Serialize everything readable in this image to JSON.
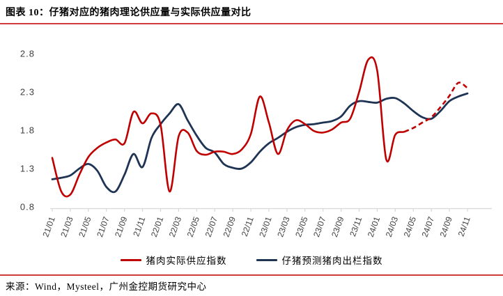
{
  "header": {
    "title": "图表 10：仔猪对应的猪肉理论供应量与实际供应量对比"
  },
  "footer": {
    "source": "来源：Wind，Mysteel，广州金控期货研究中心"
  },
  "colors": {
    "actual_red": "#C00000",
    "forecast_navy": "#1F3455",
    "divider_red": "#D03C3C",
    "axis_gray": "#D8D8D8",
    "tick_text": "#3F3F3F"
  },
  "chart_data": {
    "type": "line",
    "title": "",
    "xlabel": "",
    "ylabel": "",
    "grid": false,
    "legend_position": "bottom",
    "ylim": [
      0.8,
      2.8
    ],
    "yticks": [
      0.8,
      1.3,
      1.8,
      2.3,
      2.8
    ],
    "x": [
      "21/01",
      "21/02",
      "21/03",
      "21/04",
      "21/05",
      "21/06",
      "21/07",
      "21/08",
      "21/09",
      "21/10",
      "21/11",
      "21/12",
      "22/01",
      "22/02",
      "22/03",
      "22/04",
      "22/05",
      "22/06",
      "22/07",
      "22/08",
      "22/09",
      "22/10",
      "22/11",
      "22/12",
      "23/01",
      "23/02",
      "23/03",
      "23/04",
      "23/05",
      "23/06",
      "23/07",
      "23/08",
      "23/09",
      "23/10",
      "23/11",
      "23/12",
      "24/01",
      "24/02",
      "24/03",
      "24/04",
      "24/05",
      "24/06",
      "24/07",
      "24/08",
      "24/09",
      "24/10",
      "24/11"
    ],
    "x_tick_labels": [
      "21/01",
      "21/03",
      "21/05",
      "21/07",
      "21/09",
      "21/11",
      "22/01",
      "22/03",
      "22/05",
      "22/07",
      "22/09",
      "22/11",
      "23/01",
      "23/03",
      "23/05",
      "23/07",
      "23/09",
      "23/11",
      "24/01",
      "24/03",
      "24/05",
      "24/07",
      "24/09",
      "24/11"
    ],
    "series": [
      {
        "name": "猪肉实际供应指数",
        "color": "#C00000",
        "style": "solid_then_dashed",
        "dash_from_index": 39,
        "values": [
          1.44,
          1.0,
          0.96,
          1.22,
          1.45,
          1.57,
          1.64,
          1.68,
          1.63,
          2.04,
          1.89,
          2.02,
          1.87,
          1.0,
          1.72,
          1.77,
          1.53,
          1.48,
          1.52,
          1.52,
          1.49,
          1.55,
          1.75,
          2.24,
          1.9,
          1.49,
          1.8,
          1.93,
          1.88,
          1.79,
          1.77,
          1.81,
          1.9,
          1.95,
          2.3,
          2.72,
          2.58,
          1.42,
          1.74,
          1.78,
          1.83,
          1.9,
          1.97,
          2.1,
          2.25,
          2.42,
          2.35
        ]
      },
      {
        "name": "仔猪预测猪肉出栏指数",
        "color": "#1F3455",
        "style": "solid",
        "values": [
          1.16,
          1.18,
          1.21,
          1.3,
          1.36,
          1.27,
          1.06,
          1.0,
          1.22,
          1.49,
          1.32,
          1.7,
          1.88,
          2.02,
          2.14,
          1.93,
          1.73,
          1.57,
          1.51,
          1.36,
          1.31,
          1.3,
          1.38,
          1.52,
          1.63,
          1.7,
          1.78,
          1.84,
          1.87,
          1.88,
          1.9,
          1.92,
          1.98,
          2.12,
          2.18,
          2.17,
          2.16,
          2.21,
          2.22,
          2.15,
          2.05,
          1.97,
          1.95,
          2.05,
          2.18,
          2.24,
          2.28
        ]
      }
    ]
  }
}
